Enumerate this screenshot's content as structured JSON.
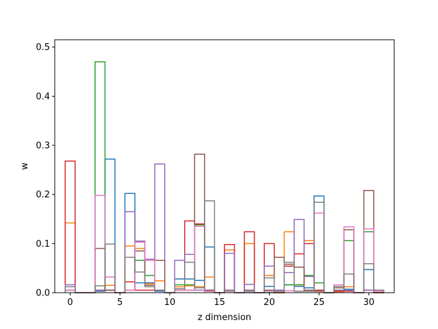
{
  "chart_data": {
    "type": "bar",
    "style": "step-histogram",
    "title": "",
    "xlabel": "z dimension",
    "ylabel": "w",
    "xlim": [
      -1.55,
      32.55
    ],
    "ylim": [
      0,
      0.515
    ],
    "xticks": [
      0,
      5,
      10,
      15,
      20,
      25,
      30
    ],
    "yticks": [
      0.0,
      0.1,
      0.2,
      0.3,
      0.4,
      0.5
    ],
    "ytick_labels": [
      "0.0",
      "0.1",
      "0.2",
      "0.3",
      "0.4",
      "0.5"
    ],
    "grid": false,
    "legend": false,
    "x": [
      0,
      1,
      2,
      3,
      4,
      5,
      6,
      7,
      8,
      9,
      10,
      11,
      12,
      13,
      14,
      15,
      16,
      17,
      18,
      19,
      20,
      21,
      22,
      23,
      24,
      25,
      26,
      27,
      28,
      29,
      30,
      31
    ],
    "series": [
      {
        "color": "#1f77b4",
        "values": [
          0.005,
          0,
          0,
          0.003,
          0.272,
          0,
          0.202,
          0.02,
          0.02,
          0.003,
          0,
          0.028,
          0.028,
          0.025,
          0.093,
          0,
          0.003,
          0,
          0,
          0,
          0.013,
          0.005,
          0.016,
          0.013,
          0.01,
          0.197,
          0,
          0.005,
          0.007,
          0,
          0.047,
          0
        ]
      },
      {
        "color": "#ff7f0e",
        "values": [
          0.142,
          0,
          0,
          0.005,
          0.015,
          0,
          0.095,
          0.09,
          0.018,
          0.024,
          0,
          0.012,
          0.014,
          0.012,
          0.032,
          0,
          0.087,
          0,
          0.1,
          0,
          0.035,
          0,
          0.124,
          0.016,
          0.106,
          0.005,
          0,
          0.002,
          0.012,
          0,
          0.005,
          0
        ]
      },
      {
        "color": "#2ca02c",
        "values": [
          0.005,
          0,
          0,
          0.47,
          0.005,
          0,
          0.022,
          0.066,
          0.035,
          0.005,
          0,
          0.016,
          0.016,
          0.138,
          0.003,
          0,
          0.003,
          0,
          0.003,
          0,
          0,
          0,
          0.016,
          0.016,
          0.035,
          0.02,
          0,
          0.005,
          0.106,
          0,
          0.124,
          0
        ]
      },
      {
        "color": "#d62728",
        "values": [
          0.268,
          0,
          0,
          0.005,
          0.005,
          0,
          0.022,
          0.005,
          0.005,
          0.005,
          0,
          0.005,
          0.146,
          0.14,
          0.003,
          0,
          0.098,
          0,
          0.124,
          0,
          0.1,
          0,
          0.054,
          0.079,
          0.1,
          0.003,
          0,
          0.003,
          0.003,
          0,
          0.005,
          0
        ]
      },
      {
        "color": "#9467bd",
        "values": [
          0.016,
          0,
          0,
          0.005,
          0.005,
          0,
          0.165,
          0.105,
          0.068,
          0.262,
          0,
          0.066,
          0.078,
          0.005,
          0.005,
          0,
          0.08,
          0,
          0.017,
          0,
          0.054,
          0.005,
          0.041,
          0.149,
          0.033,
          0.005,
          0,
          0.005,
          0.005,
          0,
          0.005,
          0.005
        ]
      },
      {
        "color": "#8c564b",
        "values": [
          0.005,
          0,
          0,
          0.09,
          0.005,
          0,
          0.005,
          0.085,
          0.015,
          0.066,
          0,
          0.005,
          0.005,
          0.282,
          0.005,
          0,
          0.005,
          0,
          0.005,
          0,
          0.005,
          0.072,
          0.058,
          0.052,
          0.005,
          0.005,
          0,
          0.01,
          0.128,
          0,
          0.208,
          0
        ]
      },
      {
        "color": "#e377c2",
        "values": [
          0.005,
          0,
          0,
          0.198,
          0.032,
          0,
          0.005,
          0.103,
          0.066,
          0.005,
          0,
          0.005,
          0.005,
          0.135,
          0.003,
          0,
          0.003,
          0,
          0.003,
          0,
          0.003,
          0.003,
          0.004,
          0.003,
          0.003,
          0.162,
          0,
          0.016,
          0.134,
          0,
          0.13,
          0.003
        ]
      },
      {
        "color": "#7f7f7f",
        "values": [
          0.012,
          0,
          0,
          0.014,
          0.099,
          0,
          0.072,
          0.042,
          0.012,
          0.005,
          0,
          0.008,
          0.062,
          0.01,
          0.187,
          0,
          0.005,
          0,
          0.004,
          0,
          0.03,
          0.003,
          0.062,
          0.003,
          0.003,
          0.184,
          0,
          0.013,
          0.038,
          0,
          0.059,
          0.005
        ]
      }
    ]
  }
}
